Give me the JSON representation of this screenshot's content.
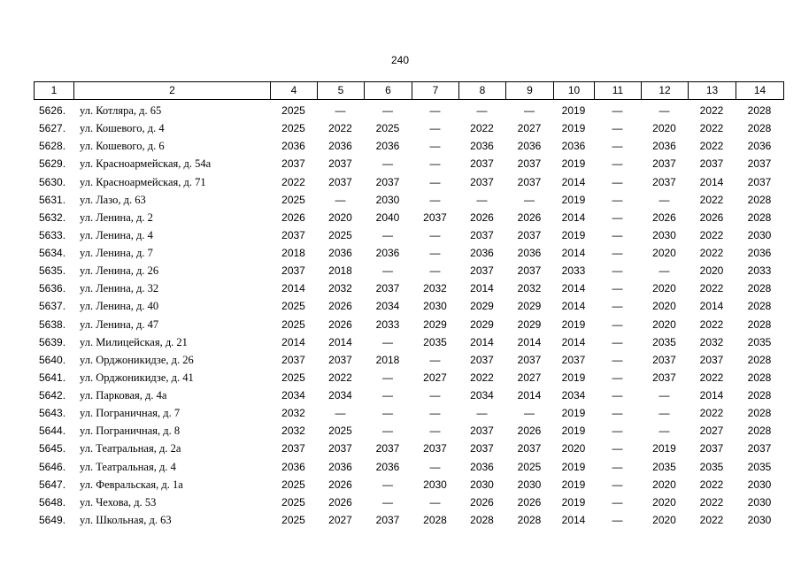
{
  "page_number": "240",
  "table": {
    "header": [
      "1",
      "2",
      "4",
      "5",
      "6",
      "7",
      "8",
      "9",
      "10",
      "11",
      "12",
      "13",
      "14"
    ],
    "rows": [
      [
        "5626.",
        "ул. Котляра, д. 65",
        "2025",
        "—",
        "—",
        "—",
        "—",
        "—",
        "2019",
        "—",
        "—",
        "2022",
        "2028"
      ],
      [
        "5627.",
        "ул. Кошевого, д. 4",
        "2025",
        "2022",
        "2025",
        "—",
        "2022",
        "2027",
        "2019",
        "—",
        "2020",
        "2022",
        "2028"
      ],
      [
        "5628.",
        "ул. Кошевого, д. 6",
        "2036",
        "2036",
        "2036",
        "—",
        "2036",
        "2036",
        "2036",
        "—",
        "2036",
        "2022",
        "2036"
      ],
      [
        "5629.",
        "ул. Красноармейская, д. 54а",
        "2037",
        "2037",
        "—",
        "—",
        "2037",
        "2037",
        "2019",
        "—",
        "2037",
        "2037",
        "2037"
      ],
      [
        "5630.",
        "ул. Красноармейская, д. 71",
        "2022",
        "2037",
        "2037",
        "—",
        "2037",
        "2037",
        "2014",
        "—",
        "2037",
        "2014",
        "2037"
      ],
      [
        "5631.",
        "ул. Лазо, д. 63",
        "2025",
        "—",
        "2030",
        "—",
        "—",
        "—",
        "2019",
        "—",
        "—",
        "2022",
        "2028"
      ],
      [
        "5632.",
        "ул. Ленина, д. 2",
        "2026",
        "2020",
        "2040",
        "2037",
        "2026",
        "2026",
        "2014",
        "—",
        "2026",
        "2026",
        "2028"
      ],
      [
        "5633.",
        "ул. Ленина, д. 4",
        "2037",
        "2025",
        "—",
        "—",
        "2037",
        "2037",
        "2019",
        "—",
        "2030",
        "2022",
        "2030"
      ],
      [
        "5634.",
        "ул. Ленина, д. 7",
        "2018",
        "2036",
        "2036",
        "—",
        "2036",
        "2036",
        "2014",
        "—",
        "2020",
        "2022",
        "2036"
      ],
      [
        "5635.",
        "ул. Ленина, д. 26",
        "2037",
        "2018",
        "—",
        "—",
        "2037",
        "2037",
        "2033",
        "—",
        "—",
        "2020",
        "2033"
      ],
      [
        "5636.",
        "ул. Ленина, д. 32",
        "2014",
        "2032",
        "2037",
        "2032",
        "2014",
        "2032",
        "2014",
        "—",
        "2020",
        "2022",
        "2028"
      ],
      [
        "5637.",
        "ул. Ленина, д. 40",
        "2025",
        "2026",
        "2034",
        "2030",
        "2029",
        "2029",
        "2014",
        "—",
        "2020",
        "2014",
        "2028"
      ],
      [
        "5638.",
        "ул. Ленина, д. 47",
        "2025",
        "2026",
        "2033",
        "2029",
        "2029",
        "2029",
        "2019",
        "—",
        "2020",
        "2022",
        "2028"
      ],
      [
        "5639.",
        "ул. Милицейская, д. 21",
        "2014",
        "2014",
        "—",
        "2035",
        "2014",
        "2014",
        "2014",
        "—",
        "2035",
        "2032",
        "2035"
      ],
      [
        "5640.",
        "ул. Орджоникидзе, д. 26",
        "2037",
        "2037",
        "2018",
        "—",
        "2037",
        "2037",
        "2037",
        "—",
        "2037",
        "2037",
        "2028"
      ],
      [
        "5641.",
        "ул. Орджоникидзе, д. 41",
        "2025",
        "2022",
        "—",
        "2027",
        "2022",
        "2027",
        "2019",
        "—",
        "2037",
        "2022",
        "2028"
      ],
      [
        "5642.",
        "ул. Парковая, д. 4а",
        "2034",
        "2034",
        "—",
        "—",
        "2034",
        "2014",
        "2034",
        "—",
        "—",
        "2014",
        "2028"
      ],
      [
        "5643.",
        "ул. Пограничная, д. 7",
        "2032",
        "—",
        "—",
        "—",
        "—",
        "—",
        "2019",
        "—",
        "—",
        "2022",
        "2028"
      ],
      [
        "5644.",
        "ул. Пограничная, д. 8",
        "2032",
        "2025",
        "—",
        "—",
        "2037",
        "2026",
        "2019",
        "—",
        "—",
        "2027",
        "2028"
      ],
      [
        "5645.",
        "ул. Театральная, д. 2а",
        "2037",
        "2037",
        "2037",
        "2037",
        "2037",
        "2037",
        "2020",
        "—",
        "2019",
        "2037",
        "2037"
      ],
      [
        "5646.",
        "ул. Театральная, д. 4",
        "2036",
        "2036",
        "2036",
        "—",
        "2036",
        "2025",
        "2019",
        "—",
        "2035",
        "2035",
        "2035"
      ],
      [
        "5647.",
        "ул. Февральская, д. 1а",
        "2025",
        "2026",
        "—",
        "2030",
        "2030",
        "2030",
        "2019",
        "—",
        "2020",
        "2022",
        "2030"
      ],
      [
        "5648.",
        "ул. Чехова, д. 53",
        "2025",
        "2026",
        "—",
        "—",
        "2026",
        "2026",
        "2019",
        "—",
        "2020",
        "2022",
        "2030"
      ],
      [
        "5649.",
        "ул. Школьная, д. 63",
        "2025",
        "2027",
        "2037",
        "2028",
        "2028",
        "2028",
        "2014",
        "—",
        "2020",
        "2022",
        "2030"
      ]
    ]
  }
}
